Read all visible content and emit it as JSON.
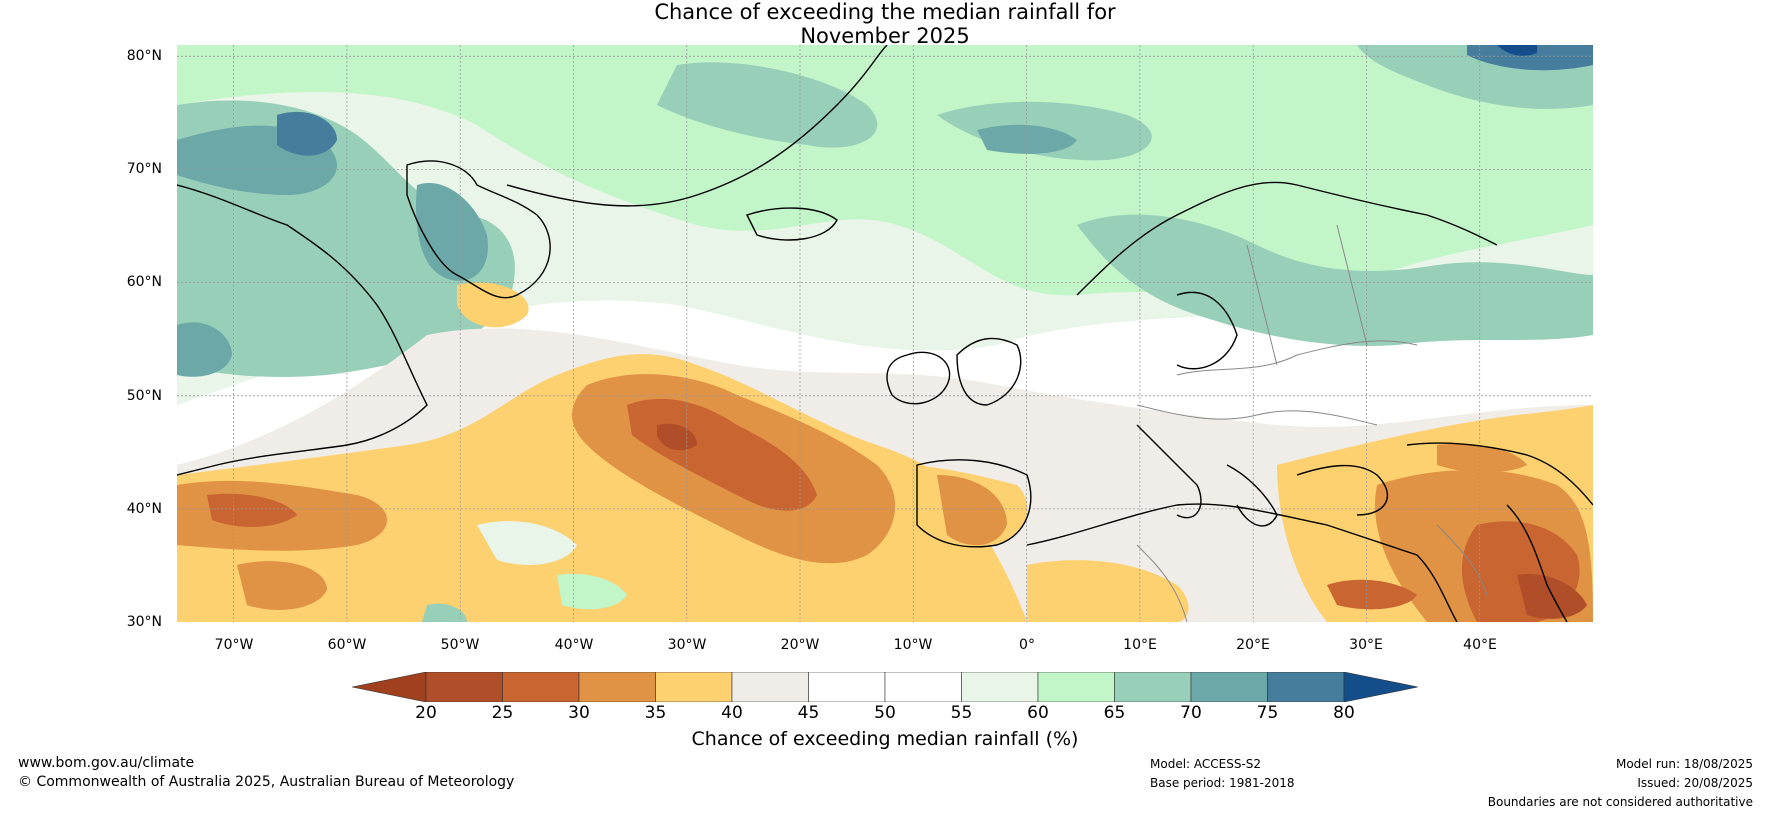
{
  "title": {
    "line1": "Chance of exceeding the median rainfall for",
    "line2": "November 2025"
  },
  "map": {
    "lat_labels": [
      "80°N",
      "70°N",
      "60°N",
      "50°N",
      "40°N",
      "30°N"
    ],
    "lon_labels": [
      "70°W",
      "60°W",
      "50°W",
      "40°W",
      "30°W",
      "20°W",
      "10°W",
      "0°",
      "10°E",
      "20°E",
      "30°E",
      "40°E"
    ],
    "lat_range": [
      30,
      81
    ],
    "lon_range": [
      -75,
      50
    ]
  },
  "legend": {
    "title": "Chance of exceeding median rainfall (%)",
    "ticks": [
      "20",
      "25",
      "30",
      "35",
      "40",
      "45",
      "50",
      "55",
      "60",
      "65",
      "70",
      "75",
      "80"
    ],
    "colors": [
      "#a0401f",
      "#b04e2a",
      "#c86530",
      "#e09245",
      "#fdd070",
      "#f0ece7",
      "#ffffff",
      "#ffffff",
      "#e8f5e8",
      "#c2f5c8",
      "#98cfb8",
      "#6da8a8",
      "#467c9c",
      "#144e8a"
    ]
  },
  "footer": {
    "website": "www.bom.gov.au/climate",
    "copyright": "© Commonwealth of Australia 2025, Australian Bureau of Meteorology",
    "model": "Model: ACCESS-S2",
    "base_period": "Base period: 1981-2018",
    "model_run": "Model run: 18/08/2025",
    "issued": "Issued: 20/08/2025",
    "disclaimer": "Boundaries are not considered authoritative"
  }
}
